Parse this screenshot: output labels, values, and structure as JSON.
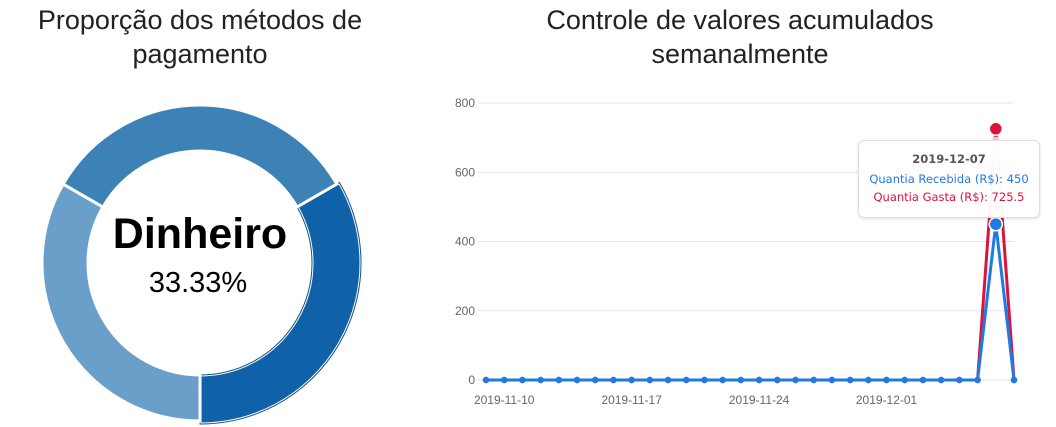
{
  "pie": {
    "title_line1": "Proporção dos métodos de",
    "title_line2": "pagamento",
    "center_label": "Dinheiro",
    "center_value": "33.33%"
  },
  "line": {
    "title_line1": "Controle de valores acumulados",
    "title_line2": "semanalmente"
  },
  "tooltip": {
    "title": "2019-12-07",
    "line1": "Quantia Recebida (R$): 450",
    "line2": "Quantia Gasta (R$): 725.5"
  },
  "chart_data": [
    {
      "type": "pie",
      "variant": "doughnut",
      "slices": [
        {
          "value": 33.33,
          "color": "#0f62a8",
          "highlighted": true
        },
        {
          "value": 33.33,
          "color": "#6a9fc9"
        },
        {
          "value": 33.34,
          "color": "#3c82b6"
        }
      ]
    },
    {
      "type": "line",
      "x": [
        "2019-11-09",
        "2019-11-10",
        "2019-11-11",
        "2019-11-12",
        "2019-11-13",
        "2019-11-14",
        "2019-11-15",
        "2019-11-16",
        "2019-11-17",
        "2019-11-18",
        "2019-11-19",
        "2019-11-20",
        "2019-11-21",
        "2019-11-22",
        "2019-11-23",
        "2019-11-24",
        "2019-11-25",
        "2019-11-26",
        "2019-11-27",
        "2019-11-28",
        "2019-11-29",
        "2019-11-30",
        "2019-12-01",
        "2019-12-02",
        "2019-12-03",
        "2019-12-04",
        "2019-12-05",
        "2019-12-06",
        "2019-12-07",
        "2019-12-08"
      ],
      "x_ticks": [
        "2019-11-10",
        "2019-11-17",
        "2019-11-24",
        "2019-12-01"
      ],
      "ylim": [
        0,
        800
      ],
      "y_ticks": [
        0,
        200,
        400,
        600,
        800
      ],
      "grid": true,
      "highlight_x": "2019-12-07",
      "series": [
        {
          "name": "Quantia Gasta (R$)",
          "color": "#dc143c",
          "values": [
            0,
            0,
            0,
            0,
            0,
            0,
            0,
            0,
            0,
            0,
            0,
            0,
            0,
            0,
            0,
            0,
            0,
            0,
            0,
            0,
            0,
            0,
            0,
            0,
            0,
            0,
            0,
            0,
            725.5,
            0
          ]
        },
        {
          "name": "Quantia Recebida (R$)",
          "color": "#1e7be6",
          "values": [
            0,
            0,
            0,
            0,
            0,
            0,
            0,
            0,
            0,
            0,
            0,
            0,
            0,
            0,
            0,
            0,
            0,
            0,
            0,
            0,
            0,
            0,
            0,
            0,
            0,
            0,
            0,
            0,
            450,
            0
          ]
        }
      ]
    }
  ]
}
